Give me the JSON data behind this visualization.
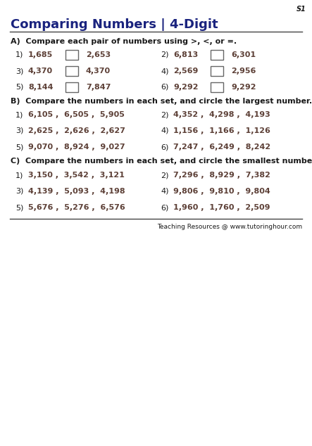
{
  "title": "Comparing Numbers | 4-Digit",
  "title_color": "#1a237e",
  "sheet_label": "S1",
  "background_color": "#ffffff",
  "section_a_header": "A)  Compare each pair of numbers using >, <, or =.",
  "section_a_rows": [
    [
      "1)",
      "1,685",
      "2,653",
      "2)",
      "6,813",
      "6,301"
    ],
    [
      "3)",
      "4,370",
      "4,370",
      "4)",
      "2,569",
      "2,956"
    ],
    [
      "5)",
      "8,144",
      "7,847",
      "6)",
      "9,292",
      "9,292"
    ]
  ],
  "section_b_header": "B)  Compare the numbers in each set, and circle the largest number.",
  "section_b_rows": [
    [
      "1)",
      "6,105 ,  6,505 ,  5,905",
      "2)",
      "4,352 ,  4,298 ,  4,193"
    ],
    [
      "3)",
      "2,625 ,  2,626 ,  2,627",
      "4)",
      "1,156 ,  1,166 ,  1,126"
    ],
    [
      "5)",
      "9,070 ,  8,924 ,  9,027",
      "6)",
      "7,247 ,  6,249 ,  8,242"
    ]
  ],
  "section_c_header": "C)  Compare the numbers in each set, and circle the smallest number.",
  "section_c_rows": [
    [
      "1)",
      "3,150 ,  3,542 ,  3,121",
      "2)",
      "7,296 ,  8,929 ,  7,382"
    ],
    [
      "3)",
      "4,139 ,  5,093 ,  4,198",
      "4)",
      "9,806 ,  9,810 ,  9,804"
    ],
    [
      "5)",
      "5,676 ,  5,276 ,  6,576",
      "6)",
      "1,960 ,  1,760 ,  2,509"
    ]
  ],
  "footer": "Teaching Resources @ www.tutoringhour.com",
  "text_color": "#1a1a1a",
  "number_color": "#5d4037",
  "line_color": "#444444",
  "title_fs": 13,
  "header_fs": 8,
  "num_fs": 8,
  "label_fs": 8
}
